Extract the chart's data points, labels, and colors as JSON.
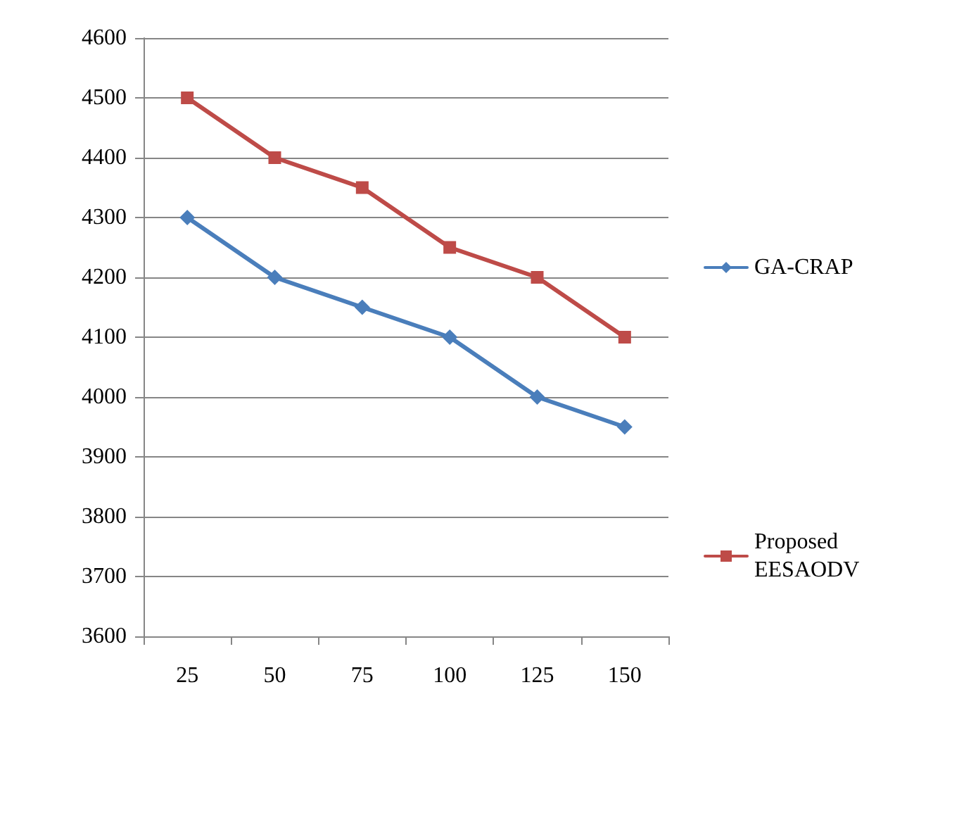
{
  "chart_data": {
    "type": "line",
    "categories": [
      "25",
      "50",
      "75",
      "100",
      "125",
      "150"
    ],
    "series": [
      {
        "name": "GA-CRAP",
        "color": "#4a7ebb",
        "marker": "diamond",
        "values": [
          4300,
          4200,
          4150,
          4100,
          4000,
          3950
        ]
      },
      {
        "name": "Proposed EESAODV",
        "color": "#be4b48",
        "marker": "square",
        "values": [
          4500,
          4400,
          4350,
          4250,
          4200,
          4100
        ]
      }
    ],
    "ylim": [
      3600,
      4600
    ],
    "yticks": [
      3600,
      3700,
      3800,
      3900,
      4000,
      4100,
      4200,
      4300,
      4400,
      4500,
      4600
    ],
    "grid": "y",
    "legend": "right",
    "line_style": "solid"
  }
}
